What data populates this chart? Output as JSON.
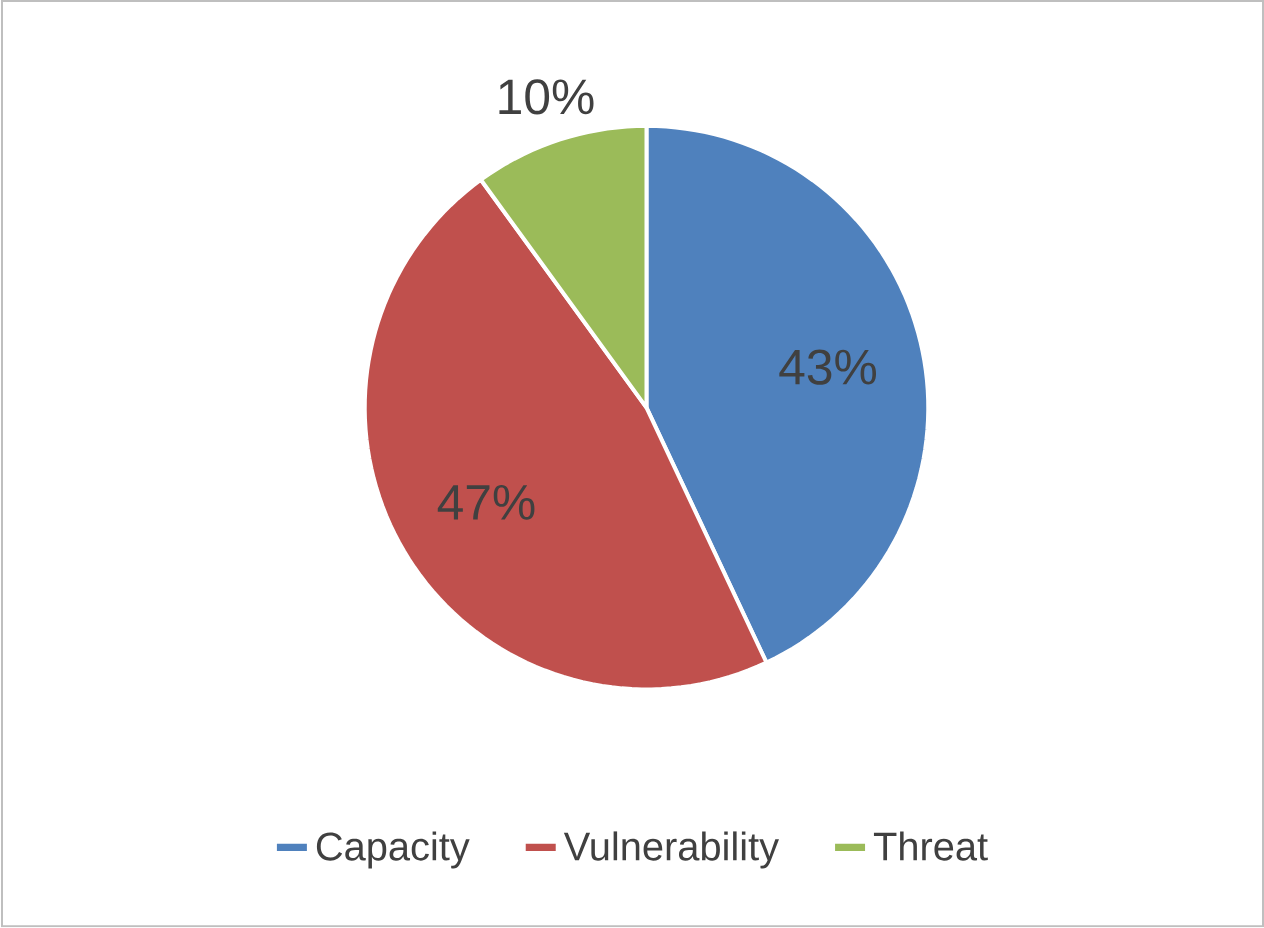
{
  "chart_data": {
    "type": "pie",
    "categories": [
      "Capacity",
      "Vulnerability",
      "Threat"
    ],
    "values": [
      43,
      47,
      10
    ],
    "colors": [
      "#4f81bd",
      "#c0504d",
      "#9bbb59"
    ],
    "value_labels": [
      "43%",
      "47%",
      "10%"
    ],
    "legend": "bottom"
  }
}
